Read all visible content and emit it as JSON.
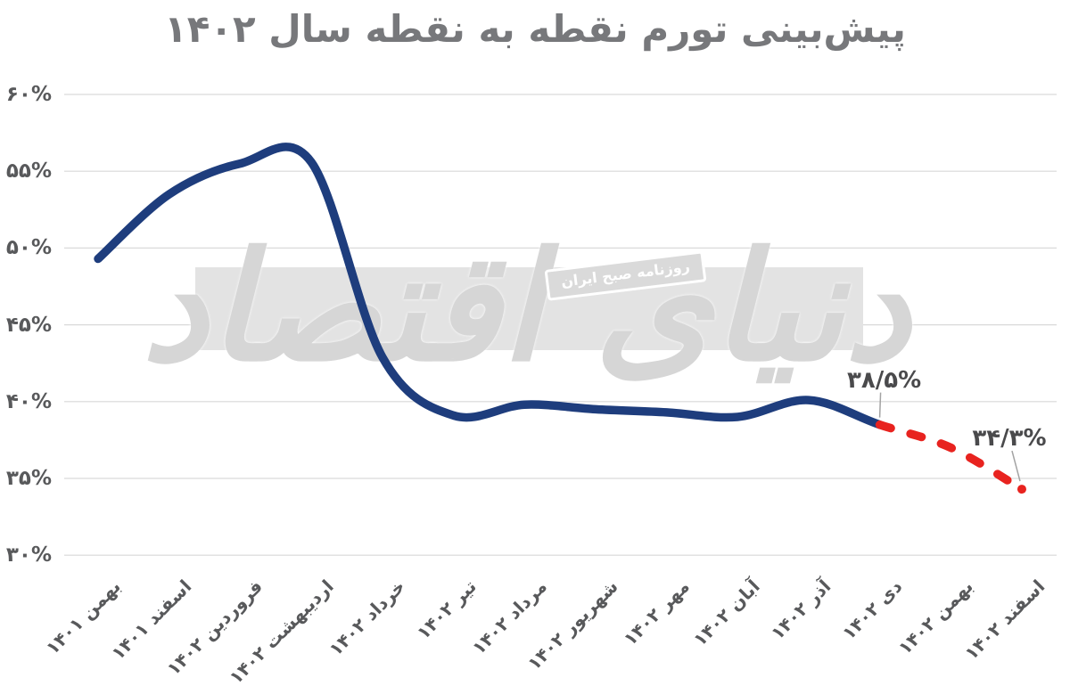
{
  "chart_data": {
    "type": "line",
    "title": "پیش‌بینی تورم نقطه به نقطه سال ۱۴۰۲",
    "categories": [
      "بهمن ۱۴۰۱",
      "اسفند ۱۴۰۱",
      "فروردین ۱۴۰۲",
      "اردیبهشت ۱۴۰۲",
      "خرداد ۱۴۰۲",
      "تیر ۱۴۰۲",
      "مرداد ۱۴۰۲",
      "شهریور ۱۴۰۲",
      "مهر ۱۴۰۲",
      "آبان ۱۴۰۲",
      "آذر ۱۴۰۲",
      "دی ۱۴۰۲",
      "بهمن ۱۴۰۲",
      "اسفند ۱۴۰۲"
    ],
    "series": [
      {
        "name": "actual",
        "style": "solid",
        "color": "#1e3d7d",
        "start_index": 0,
        "values": [
          49.3,
          53.5,
          55.5,
          55.6,
          42.9,
          39.1,
          39.8,
          39.5,
          39.3,
          39.0,
          40.1,
          38.5
        ]
      },
      {
        "name": "forecast",
        "style": "dashed",
        "color": "#e8231f",
        "start_index": 11,
        "values": [
          38.5,
          37.0,
          34.3
        ],
        "end_marker": "dot"
      }
    ],
    "annotations": [
      {
        "text": "۳۸/۵%",
        "month_index": 11,
        "value": 38.5
      },
      {
        "text": "۳۴/۳%",
        "month_index": 13,
        "value": 34.3
      }
    ],
    "y_axis": {
      "tick_labels": [
        "۶۰%",
        "۵۵%",
        "۵۰%",
        "۴۵%",
        "۴۰%",
        "۳۵%",
        "۳۰%"
      ],
      "tick_values": [
        60,
        55,
        50,
        45,
        40,
        35,
        30
      ],
      "range": [
        30,
        60
      ]
    },
    "grid": true,
    "legend": "none",
    "colors": {
      "grid": "#d9d9d9",
      "title_text": "#77787b",
      "axis_text": "#58595b",
      "annotation_text": "#4a4a4c",
      "leader_line": "#a3a3a3"
    }
  },
  "watermark": {
    "logo_text": "دنیای اقتصاد",
    "badge_text": "روزنامه صبح ایران",
    "band_color": "#e3e3e3",
    "logo_color": "#d6d6d6",
    "badge_text_color": "#ffffff",
    "badge_bg_color": "#dadada"
  }
}
